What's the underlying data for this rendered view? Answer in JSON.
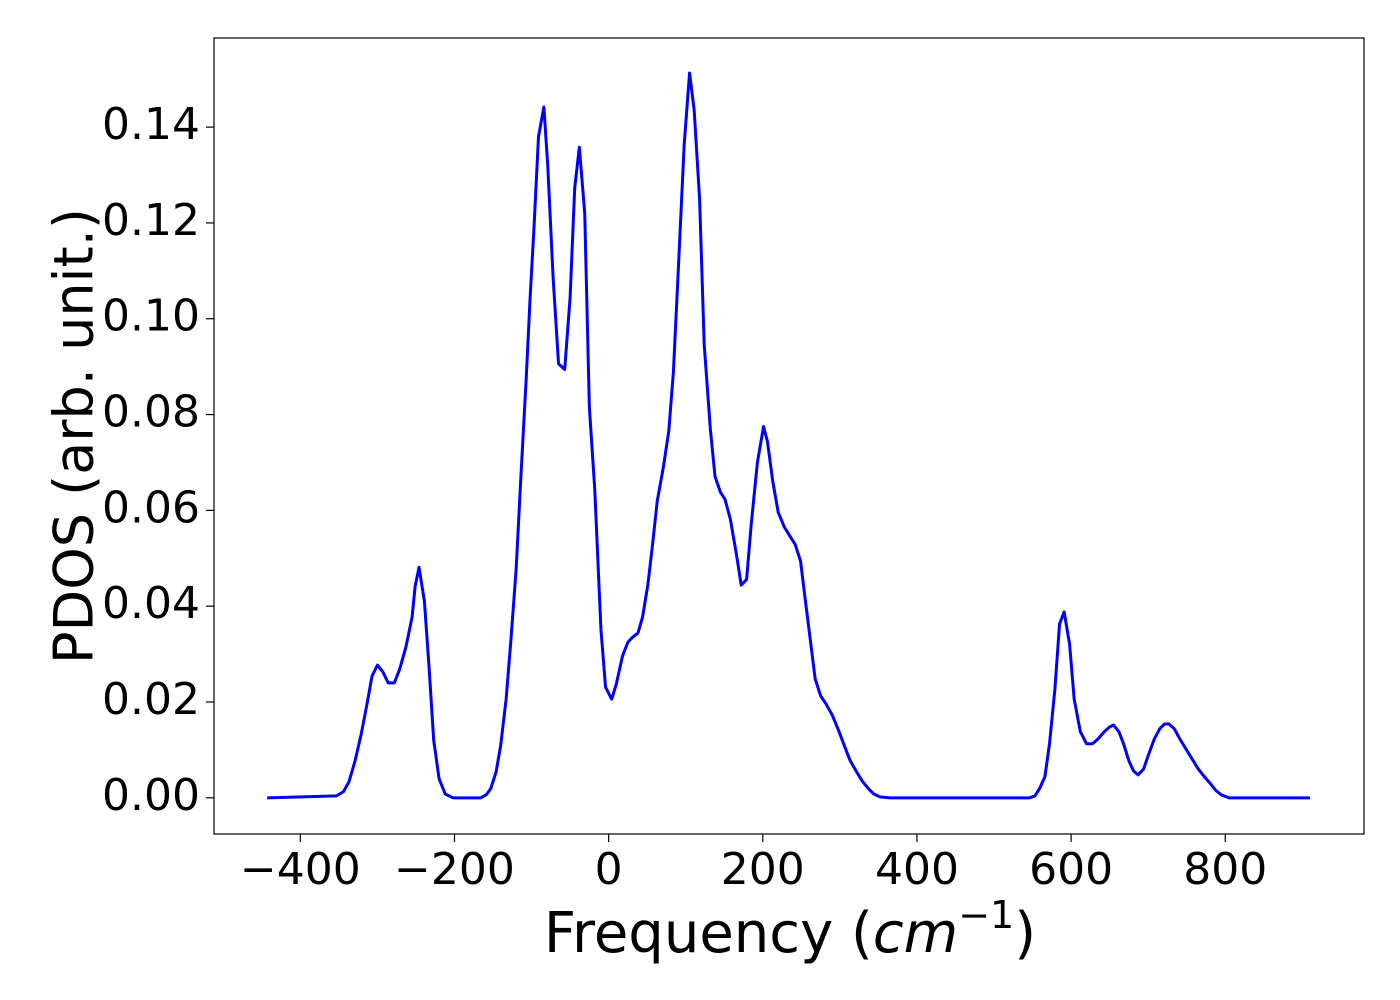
{
  "chart_data": {
    "type": "line",
    "x_label": [
      "Frequency (",
      "cm",
      "−1",
      ")"
    ],
    "y_label": "PDOS (arb. unit.)",
    "xlim": [
      -512,
      980
    ],
    "ylim": [
      -0.00755,
      0.1586
    ],
    "xticks": [
      {
        "value": -400,
        "label": "−400"
      },
      {
        "value": -200,
        "label": "−200"
      },
      {
        "value": 0,
        "label": "0"
      },
      {
        "value": 200,
        "label": "200"
      },
      {
        "value": 400,
        "label": "400"
      },
      {
        "value": 600,
        "label": "600"
      },
      {
        "value": 800,
        "label": "800"
      }
    ],
    "yticks": [
      {
        "value": 0,
        "label": "0.00"
      },
      {
        "value": 0.02,
        "label": "0.02"
      },
      {
        "value": 0.04,
        "label": "0.04"
      },
      {
        "value": 0.06,
        "label": "0.06"
      },
      {
        "value": 0.08,
        "label": "0.08"
      },
      {
        "value": 0.1,
        "label": "0.10"
      },
      {
        "value": 0.12,
        "label": "0.12"
      },
      {
        "value": 0.14,
        "label": "0.14"
      }
    ],
    "grid": false,
    "x": [
      -443,
      -353,
      -344,
      -337,
      -329,
      -321,
      -313,
      -307,
      -300,
      -293,
      -286,
      -278,
      -271,
      -263,
      -255,
      -251,
      -246,
      -239,
      -233,
      -227,
      -220,
      -212,
      -202,
      -166,
      -159,
      -153,
      -146,
      -140,
      -133,
      -127,
      -120,
      -114,
      -107,
      -102,
      -97,
      -91,
      -84,
      -79,
      -72,
      -65,
      -57,
      -50,
      -44,
      -38,
      -31,
      -25,
      -18,
      -10,
      -4,
      4,
      10,
      18,
      25,
      31,
      38,
      44,
      51,
      57,
      63,
      71,
      78,
      84,
      91,
      98,
      105,
      111,
      118,
      124,
      132,
      138,
      145,
      151,
      158,
      166,
      172,
      179,
      185,
      193,
      201,
      206,
      213,
      220,
      228,
      236,
      242,
      249,
      255,
      262,
      268,
      275,
      282,
      290,
      298,
      306,
      313,
      321,
      329,
      337,
      344,
      352,
      365,
      546,
      553,
      559,
      566,
      572,
      579,
      585,
      591,
      598,
      604,
      612,
      620,
      628,
      635,
      643,
      650,
      655,
      662,
      668,
      675,
      681,
      687,
      694,
      700,
      708,
      715,
      721,
      727,
      734,
      741,
      749,
      757,
      765,
      773,
      781,
      788,
      795,
      805,
      910
    ],
    "series": [
      {
        "color": "#0000ff",
        "values": [
          0,
          0.0004,
          0.0013,
          0.0033,
          0.0077,
          0.0133,
          0.02,
          0.0254,
          0.0277,
          0.0263,
          0.024,
          0.024,
          0.0269,
          0.0315,
          0.0377,
          0.0442,
          0.0481,
          0.041,
          0.0273,
          0.0121,
          0.004,
          0.0008,
          0,
          0,
          0.0006,
          0.0019,
          0.0054,
          0.011,
          0.0206,
          0.0325,
          0.0477,
          0.0665,
          0.0873,
          0.104,
          0.1185,
          0.138,
          0.1442,
          0.132,
          0.1085,
          0.0906,
          0.0894,
          0.1044,
          0.1273,
          0.1358,
          0.122,
          0.0815,
          0.0644,
          0.0352,
          0.0231,
          0.0206,
          0.0238,
          0.0296,
          0.0325,
          0.0335,
          0.0344,
          0.0377,
          0.0446,
          0.0529,
          0.0619,
          0.069,
          0.0765,
          0.0888,
          0.1123,
          0.1363,
          0.1513,
          0.1435,
          0.125,
          0.0946,
          0.0769,
          0.0671,
          0.0638,
          0.0623,
          0.0581,
          0.0506,
          0.0444,
          0.0456,
          0.0571,
          0.07,
          0.0775,
          0.0744,
          0.066,
          0.0596,
          0.0565,
          0.0544,
          0.0529,
          0.0494,
          0.0415,
          0.0325,
          0.0248,
          0.0213,
          0.0196,
          0.0173,
          0.0142,
          0.0108,
          0.0079,
          0.0056,
          0.0035,
          0.0019,
          0.0008,
          0.0002,
          0,
          0,
          0.0004,
          0.0019,
          0.0044,
          0.0113,
          0.0227,
          0.0363,
          0.0388,
          0.0321,
          0.0206,
          0.0138,
          0.0113,
          0.0113,
          0.0123,
          0.0138,
          0.0148,
          0.0152,
          0.0138,
          0.0113,
          0.0077,
          0.0056,
          0.0048,
          0.006,
          0.0088,
          0.0123,
          0.0144,
          0.0154,
          0.0154,
          0.0144,
          0.0123,
          0.0102,
          0.0081,
          0.006,
          0.0044,
          0.0029,
          0.0015,
          0.0006,
          0,
          0
        ]
      }
    ]
  }
}
